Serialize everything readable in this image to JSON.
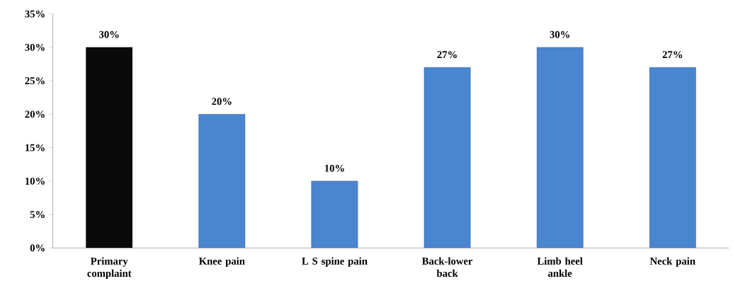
{
  "chart_data": {
    "type": "bar",
    "categories": [
      "Primary complaint",
      "Knee pain",
      "L S spine pain",
      "Back-lower back",
      "Limb heel ankle",
      "Neck pain"
    ],
    "values": [
      30,
      20,
      10,
      27,
      30,
      27
    ],
    "colors": [
      "#0a0a0a",
      "#4a86d0",
      "#4a86d0",
      "#4a86d0",
      "#4a86d0",
      "#4a86d0"
    ],
    "value_labels": [
      "30%",
      "20%",
      "10%",
      "27%",
      "30%",
      "27%"
    ],
    "ylim": [
      0,
      35
    ],
    "yticks": [
      {
        "value": 0,
        "label": "0%"
      },
      {
        "value": 5,
        "label": "5%"
      },
      {
        "value": 10,
        "label": "10%"
      },
      {
        "value": 15,
        "label": "15%"
      },
      {
        "value": 20,
        "label": "20%"
      },
      {
        "value": 25,
        "label": "25%"
      },
      {
        "value": 30,
        "label": "30%"
      },
      {
        "value": 35,
        "label": "35%"
      }
    ],
    "grid": false
  }
}
